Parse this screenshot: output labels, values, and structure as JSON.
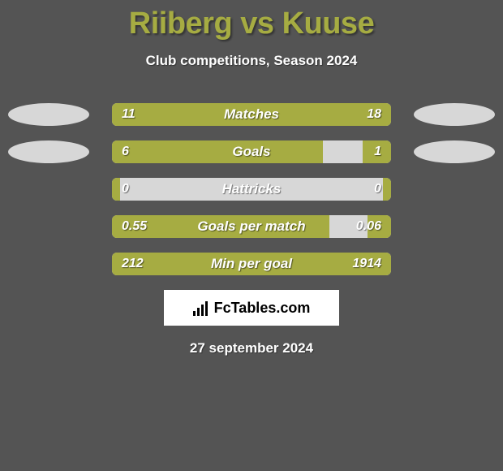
{
  "title": "Riiberg vs Kuuse",
  "subtitle": "Club competitions, Season 2024",
  "date": "27 september 2024",
  "logo": "FcTables.com",
  "colors": {
    "background": "#545454",
    "accent": "#a6ac42",
    "bar_bg": "#d7d7d7",
    "ellipse": "#d7d7d7",
    "text": "#ffffff",
    "logo_bg": "#ffffff",
    "logo_text": "#000000"
  },
  "rows": [
    {
      "label": "Matches",
      "left_val": "11",
      "right_val": "18",
      "left_pct": 37.9,
      "right_pct": 62.1,
      "show_ellipses": true
    },
    {
      "label": "Goals",
      "left_val": "6",
      "right_val": "1",
      "left_pct": 75.7,
      "right_pct": 10.1,
      "show_ellipses": true
    },
    {
      "label": "Hattricks",
      "left_val": "0",
      "right_val": "0",
      "left_pct": 3.0,
      "right_pct": 3.0,
      "show_ellipses": false
    },
    {
      "label": "Goals per match",
      "left_val": "0.55",
      "right_val": "0.06",
      "left_pct": 78.0,
      "right_pct": 8.5,
      "show_ellipses": false
    },
    {
      "label": "Min per goal",
      "left_val": "212",
      "right_val": "1914",
      "left_pct": 10.0,
      "right_pct": 90.0,
      "show_ellipses": false
    }
  ]
}
